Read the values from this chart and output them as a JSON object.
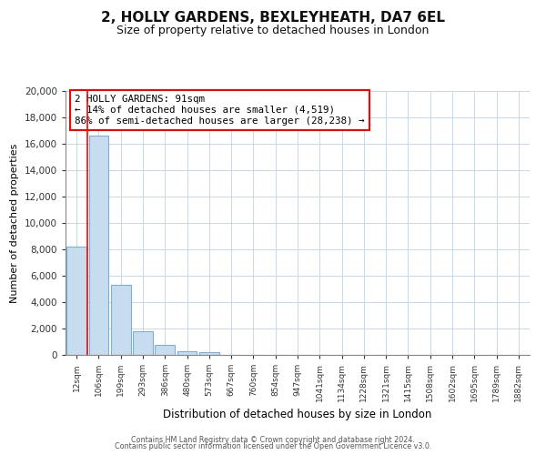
{
  "title": "2, HOLLY GARDENS, BEXLEYHEATH, DA7 6EL",
  "subtitle": "Size of property relative to detached houses in London",
  "xlabel": "Distribution of detached houses by size in London",
  "ylabel": "Number of detached properties",
  "bar_labels": [
    "12sqm",
    "106sqm",
    "199sqm",
    "293sqm",
    "386sqm",
    "480sqm",
    "573sqm",
    "667sqm",
    "760sqm",
    "854sqm",
    "947sqm",
    "1041sqm",
    "1134sqm",
    "1228sqm",
    "1321sqm",
    "1415sqm",
    "1508sqm",
    "1602sqm",
    "1695sqm",
    "1789sqm",
    "1882sqm"
  ],
  "bar_values": [
    8200,
    16600,
    5300,
    1800,
    750,
    280,
    200,
    0,
    0,
    0,
    0,
    0,
    0,
    0,
    0,
    0,
    0,
    0,
    0,
    0,
    0
  ],
  "bar_fill_color": "#c8dcf0",
  "bar_edge_color": "#7ab0d4",
  "ylim": [
    0,
    20000
  ],
  "yticks": [
    0,
    2000,
    4000,
    6000,
    8000,
    10000,
    12000,
    14000,
    16000,
    18000,
    20000
  ],
  "red_line_x": 0.5,
  "annotation_line1": "2 HOLLY GARDENS: 91sqm",
  "annotation_line2": "← 14% of detached houses are smaller (4,519)",
  "annotation_line3": "86% of semi-detached houses are larger (28,238) →",
  "footer_line1": "Contains HM Land Registry data © Crown copyright and database right 2024.",
  "footer_line2": "Contains public sector information licensed under the Open Government Licence v3.0.",
  "background_color": "#ffffff",
  "grid_color": "#c8d8e8"
}
